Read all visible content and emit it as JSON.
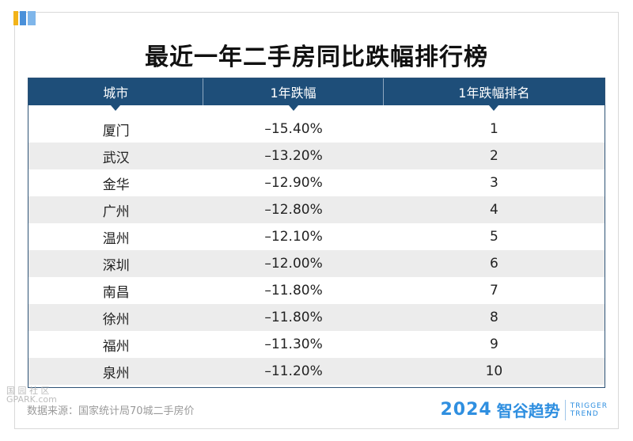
{
  "title": "最近一年二手房同比跌幅排行榜",
  "table": {
    "headers": [
      "城市",
      "1年跌幅",
      "1年跌幅排名"
    ],
    "rows": [
      {
        "city": "厦门",
        "decline": "–15.40%",
        "rank": "1"
      },
      {
        "city": "武汉",
        "decline": "–13.20%",
        "rank": "2"
      },
      {
        "city": "金华",
        "decline": "–12.90%",
        "rank": "3"
      },
      {
        "city": "广州",
        "decline": "–12.80%",
        "rank": "4"
      },
      {
        "city": "温州",
        "decline": "–12.10%",
        "rank": "5"
      },
      {
        "city": "深圳",
        "decline": "–12.00%",
        "rank": "6"
      },
      {
        "city": "南昌",
        "decline": "–11.80%",
        "rank": "7"
      },
      {
        "city": "徐州",
        "decline": "–11.80%",
        "rank": "8"
      },
      {
        "city": "福州",
        "decline": "–11.30%",
        "rank": "9"
      },
      {
        "city": "泉州",
        "decline": "–11.20%",
        "rank": "10"
      }
    ]
  },
  "source": "数据来源：国家统计局70城二手房价",
  "watermark": {
    "line1": "国 园 社 区",
    "line2": "GPARK.com"
  },
  "brand": {
    "year": "2024",
    "name": "智谷趋势",
    "en_line1": "TRIGGER",
    "en_line2": "TREND"
  },
  "colors": {
    "header_bg": "#1e4e79",
    "stripe": "#ececec",
    "brand": "#2f8fe0"
  }
}
